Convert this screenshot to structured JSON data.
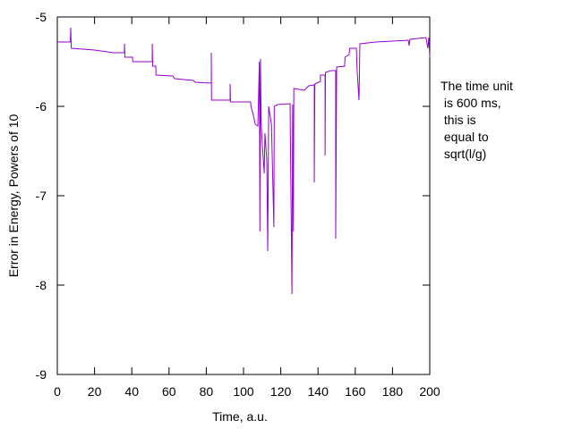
{
  "chart_data": {
    "type": "line",
    "xlabel": "Time, a.u.",
    "ylabel": "Error in Energy, Powers of 10",
    "annotation": [
      "The time unit",
      " is 600 ms,",
      " this is",
      " equal to",
      " sqrt(l/g)"
    ],
    "color": "#9400d3",
    "xlim": [
      0,
      200
    ],
    "xticks": [
      0,
      20,
      40,
      60,
      80,
      100,
      120,
      140,
      160,
      180,
      200
    ],
    "ylim": [
      -9,
      -5
    ],
    "yticks": [
      -9,
      -8,
      -7,
      -6,
      -5
    ],
    "x": [
      0,
      7,
      7.2,
      7.5,
      20,
      30,
      36,
      36.1,
      36.3,
      40.4,
      40.5,
      51,
      51,
      51.2,
      52.9,
      53,
      62,
      63,
      73,
      74,
      82.7,
      82.7,
      82.8,
      92.8,
      92.8,
      93,
      103.8,
      104,
      105.3,
      106.3,
      107.7,
      108.5,
      108.8,
      109.1,
      109.5,
      110,
      111.1,
      111.5,
      112.5,
      113,
      113.5,
      115,
      116.3,
      116.5,
      118.3,
      125,
      126,
      126.4,
      126.8,
      127,
      132.7,
      135,
      138,
      138,
      138.3,
      141.3,
      141.3,
      143.8,
      143.8,
      144,
      147,
      149.5,
      149.5,
      150,
      154.3,
      154.5,
      156.7,
      157,
      160.6,
      161,
      162,
      162.5,
      171,
      180,
      188.5,
      188.9,
      189.4,
      198,
      199,
      199.5,
      200
    ],
    "values": [
      -5.28,
      -5.28,
      -5.12,
      -5.35,
      -5.37,
      -5.4,
      -5.4,
      -5.3,
      -5.45,
      -5.45,
      -5.5,
      -5.5,
      -5.3,
      -5.55,
      -5.55,
      -5.65,
      -5.66,
      -5.69,
      -5.71,
      -5.73,
      -5.74,
      -5.4,
      -5.93,
      -5.93,
      -5.75,
      -5.95,
      -5.95,
      -6.0,
      -6.1,
      -6.2,
      -6.22,
      -5.5,
      -7.4,
      -5.47,
      -6.2,
      -6.4,
      -6.75,
      -6.3,
      -6.6,
      -7.62,
      -6.0,
      -6.2,
      -7.35,
      -6.0,
      -5.98,
      -5.97,
      -8.1,
      -5.98,
      -7.4,
      -5.8,
      -5.82,
      -5.77,
      -5.76,
      -6.85,
      -5.75,
      -5.72,
      -5.65,
      -5.65,
      -6.55,
      -5.62,
      -5.6,
      -5.6,
      -7.48,
      -5.56,
      -5.55,
      -5.45,
      -5.42,
      -5.35,
      -5.35,
      -5.6,
      -5.93,
      -5.3,
      -5.28,
      -5.27,
      -5.26,
      -5.32,
      -5.25,
      -5.23,
      -5.35,
      -5.23,
      -5.45
    ]
  }
}
